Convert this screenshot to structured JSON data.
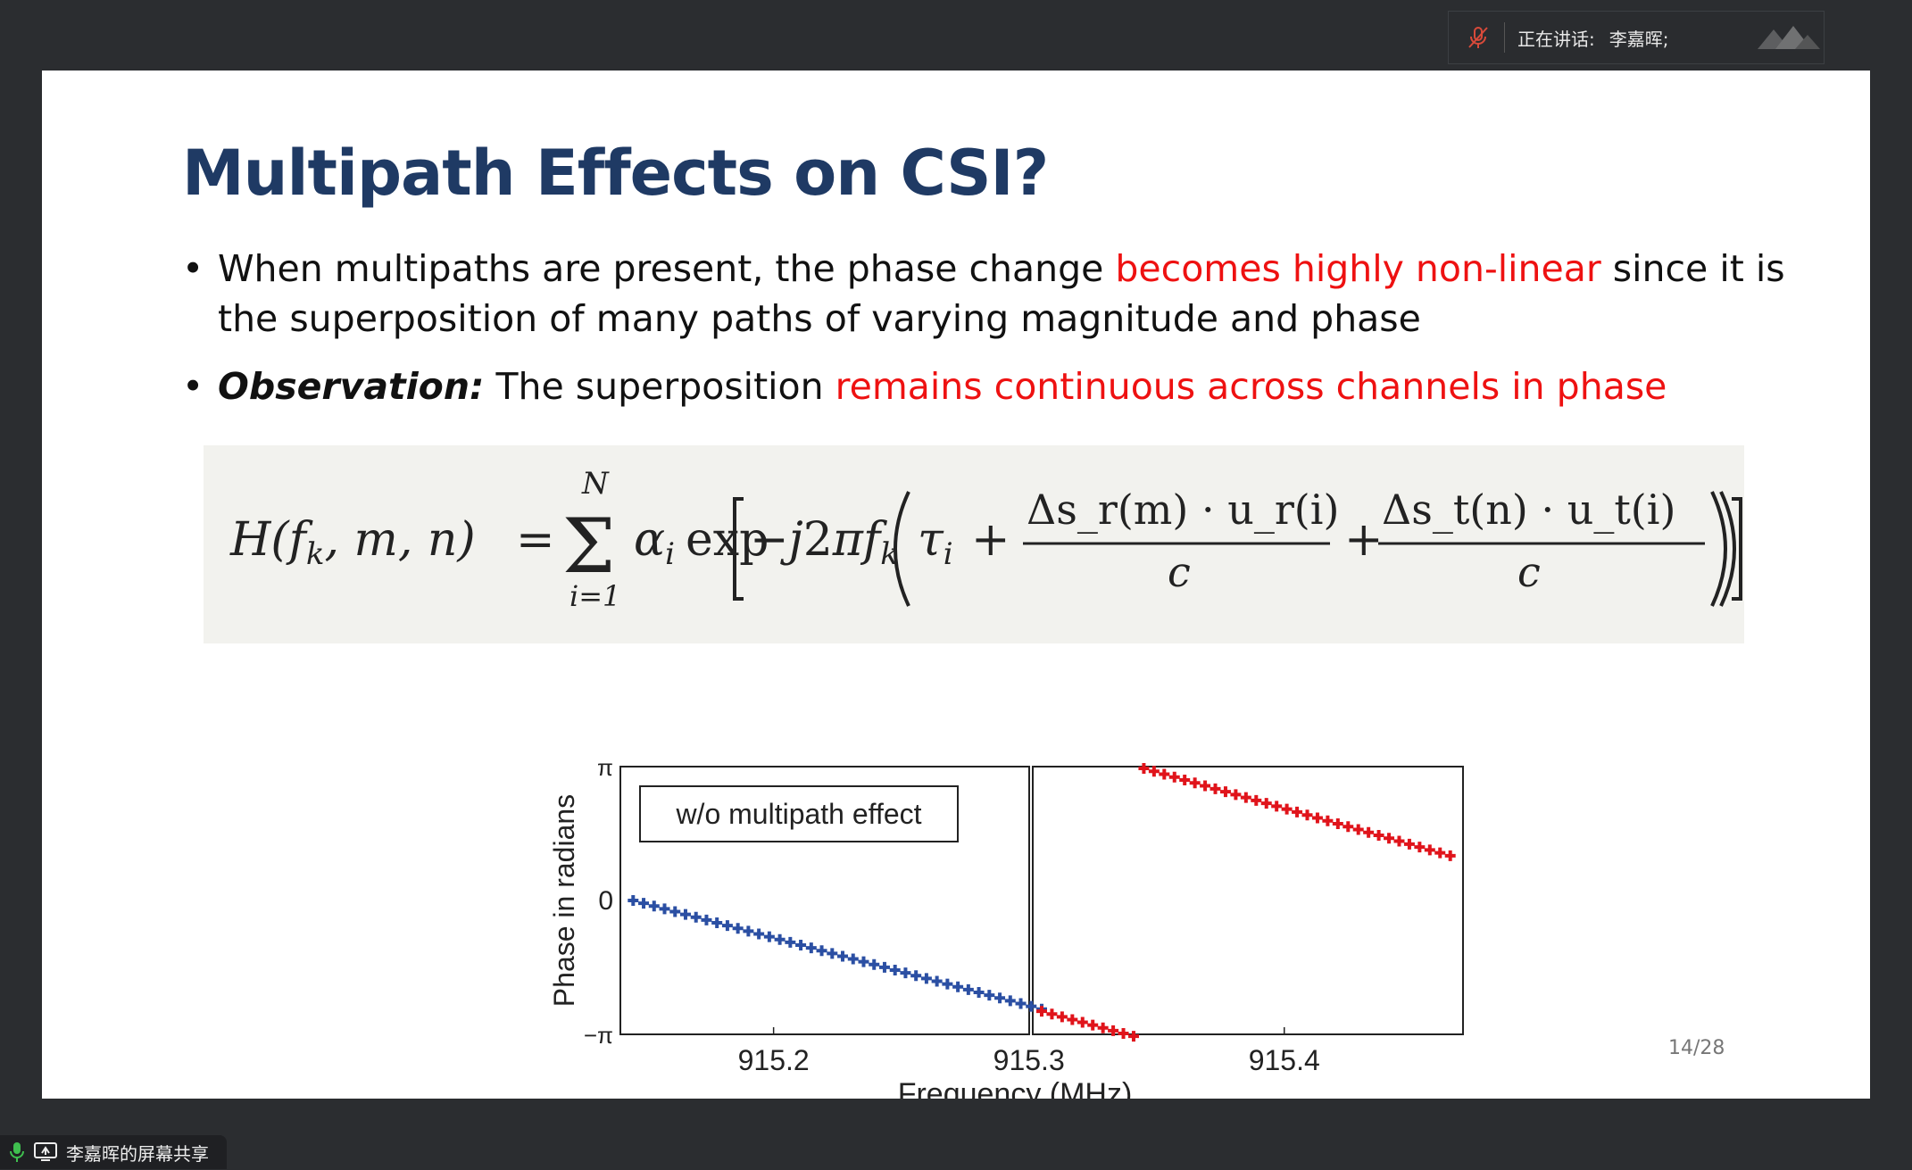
{
  "meeting": {
    "speaking_label": "正在讲话:",
    "speaker_name": "李嘉晖;",
    "share_label": "李嘉晖的屏幕共享"
  },
  "slide": {
    "title": "Multipath Effects on CSI?",
    "bullet1": {
      "pre": "When multipaths are present, the phase change ",
      "highlight": "becomes highly non-linear",
      "post": " since it is the superposition of many paths of varying magnitude and phase"
    },
    "bullet2": {
      "lead": "Observation:",
      "pre": " The superposition ",
      "highlight": "remains continuous across channels in phase"
    },
    "formula": {
      "lhs": "H(f_k, m, n) =",
      "sum_top": "N",
      "sum_bottom": "i=1",
      "body": "α_i exp[−j2πf_k(τ_i + Δs_r(m)·u_r(i)/c + Δs_t(n)·u_t(i)/c)]",
      "num1": "Δs_r(m) · u_r(i)",
      "num2": "Δs_t(n) · u_t(i)",
      "denom": "c"
    },
    "page_number": "14/28"
  },
  "chart_data": {
    "type": "scatter",
    "xlabel": "Frequency (MHz)",
    "ylabel": "Phase in radians",
    "x_ticks": [
      "915.2",
      "915.3",
      "915.4"
    ],
    "y_ticks": [
      "−π",
      "0",
      "π"
    ],
    "xlim": [
      915.14,
      915.47
    ],
    "ylim": [
      -3.1416,
      3.1416
    ],
    "annotation": "w/o multipath effect",
    "series": [
      {
        "color": "#2b4fa3",
        "x_start": 915.145,
        "x_end": 915.305,
        "y_start": 0.0,
        "y_end": -2.55,
        "points": 40
      },
      {
        "color": "#e0141b",
        "x_start": 915.305,
        "x_end": 915.345,
        "y_start": -2.6,
        "y_end": -3.25,
        "points": 11
      },
      {
        "color": "#e0141b",
        "x_start": 915.345,
        "x_end": 915.465,
        "y_start": 3.1,
        "y_end": 1.05,
        "points": 31
      }
    ]
  },
  "colors": {
    "title": "#1f3a64",
    "highlight": "#e11111",
    "formula_bg": "#f2f2ee"
  },
  "icons": [
    "mic-muted-icon",
    "speaker-logo-icon",
    "mic-icon",
    "screen-share-icon"
  ]
}
